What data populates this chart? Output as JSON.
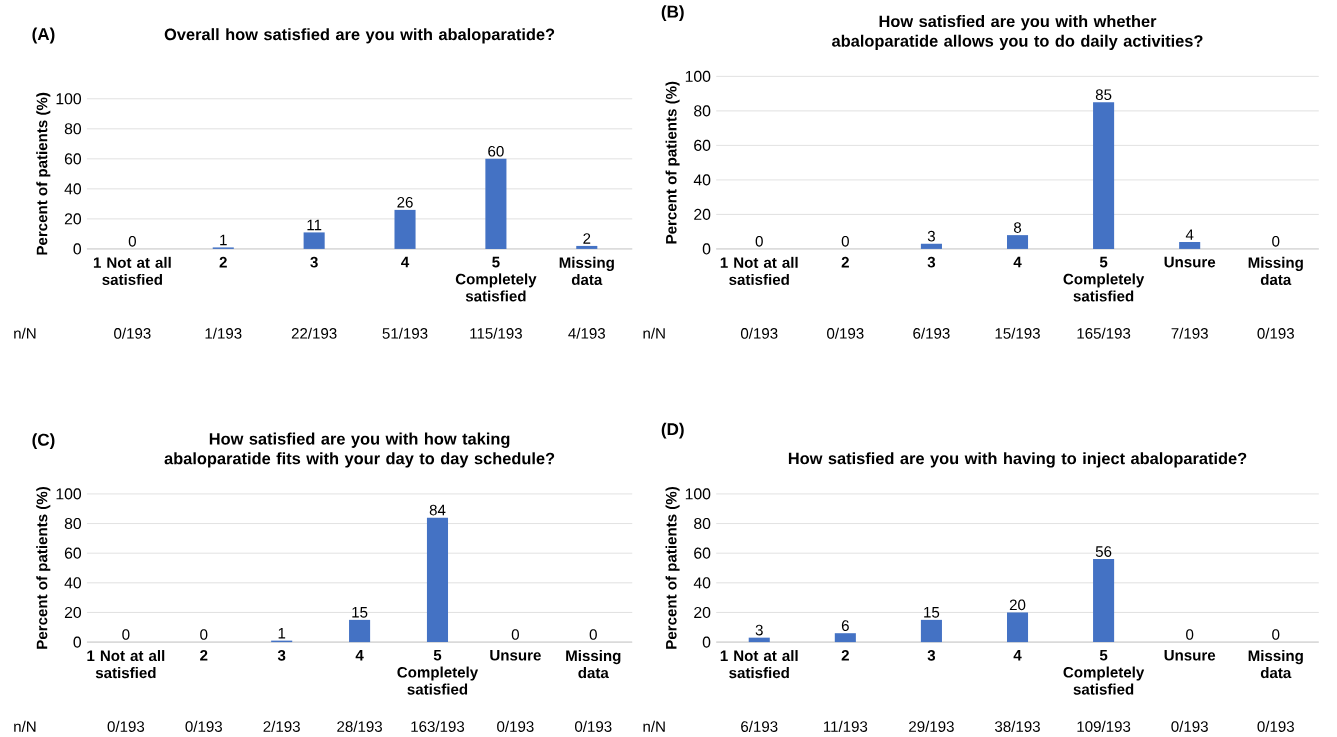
{
  "chart_data": [
    {
      "type": "bar",
      "title": "Overall how satisfied are you with abaloparatide?",
      "ylabel": "Percent of patients (%)",
      "categories": [
        "1 Not at all satisfied",
        "2",
        "3",
        "4",
        "5 Completely satisfied",
        "Missing data"
      ],
      "values": [
        0,
        1,
        11,
        26,
        60,
        2
      ],
      "color": "#4472c4",
      "ylim": [
        0,
        100
      ],
      "yticks": [
        0,
        20,
        40,
        60,
        80,
        100
      ],
      "grid": "y",
      "data_labels": true,
      "annotations": [
        "(A)",
        "n/N",
        "0/193",
        "1/193",
        "22/193",
        "51/193",
        "115/193",
        "4/193"
      ]
    },
    {
      "type": "bar",
      "title": "How satisfied are you with whether abaloparatide allows you to do daily activities?",
      "ylabel": "Percent of patients (%)",
      "categories": [
        "1 Not at all satisfied",
        "2",
        "3",
        "4",
        "5 Completely satisfied",
        "Unsure",
        "Missing data"
      ],
      "values": [
        0,
        0,
        3,
        8,
        85,
        4,
        0
      ],
      "color": "#4472c4",
      "ylim": [
        0,
        100
      ],
      "yticks": [
        0,
        20,
        40,
        60,
        80,
        100
      ],
      "grid": "y",
      "data_labels": true,
      "annotations": [
        "(B)",
        "n/N",
        "0/193",
        "0/193",
        "6/193",
        "15/193",
        "165/193",
        "7/193",
        "0/193"
      ]
    },
    {
      "type": "bar",
      "title": "How satisfied are you with how taking abaloparatide fits with your day to day schedule?",
      "ylabel": "Percent of patients (%)",
      "categories": [
        "1 Not at all satisfied",
        "2",
        "3",
        "4",
        "5 Completely satisfied",
        "Unsure",
        "Missing data"
      ],
      "values": [
        0,
        0,
        1,
        15,
        84,
        0,
        0
      ],
      "color": "#4472c4",
      "ylim": [
        0,
        100
      ],
      "yticks": [
        0,
        20,
        40,
        60,
        80,
        100
      ],
      "grid": "y",
      "data_labels": true,
      "annotations": [
        "(C)",
        "n/N",
        "0/193",
        "0/193",
        "2/193",
        "28/193",
        "163/193",
        "0/193",
        "0/193"
      ]
    },
    {
      "type": "bar",
      "title": "How satisfied are you with having to inject abaloparatide?",
      "ylabel": "Percent of patients (%)",
      "categories": [
        "1 Not at all satisfied",
        "2",
        "3",
        "4",
        "5 Completely satisfied",
        "Unsure",
        "Missing data"
      ],
      "values": [
        3,
        6,
        15,
        20,
        56,
        0,
        0
      ],
      "color": "#4472c4",
      "ylim": [
        0,
        100
      ],
      "yticks": [
        0,
        20,
        40,
        60,
        80,
        100
      ],
      "grid": "y",
      "data_labels": true,
      "annotations": [
        "(D)",
        "n/N",
        "6/193",
        "11/193",
        "29/193",
        "38/193",
        "109/193",
        "0/193",
        "0/193"
      ]
    }
  ]
}
